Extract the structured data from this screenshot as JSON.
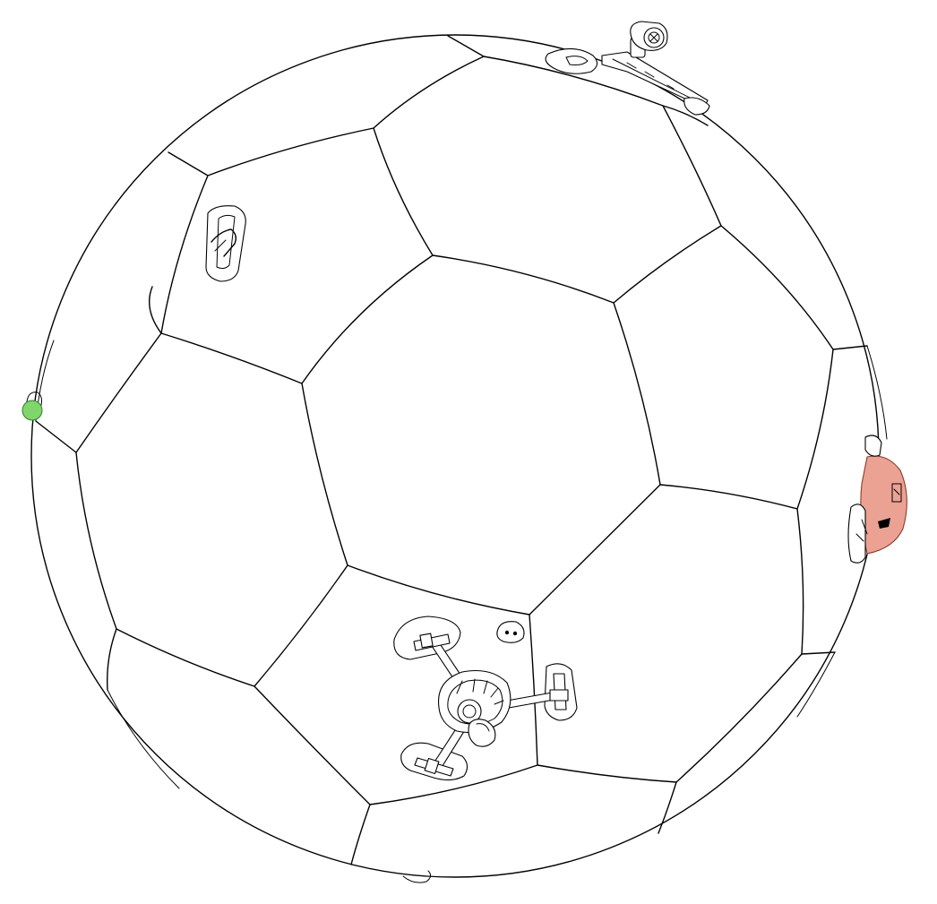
{
  "colors": {
    "background": "#ffffff",
    "line": "#000000",
    "green_marker": "#7fd66b",
    "green_marker_stroke": "#2f7d2a",
    "red_cap": "#eba293",
    "red_cap_stroke": "#8a3b2e"
  },
  "parts": [
    {
      "id": "sphere-outline",
      "kind": "outline"
    },
    {
      "id": "panel-seams",
      "kind": "seams"
    },
    {
      "id": "top-camera-mount",
      "kind": "accessory"
    },
    {
      "id": "upper-left-handle",
      "kind": "accessory"
    },
    {
      "id": "left-green-marker",
      "kind": "marker",
      "color": "#7fd66b"
    },
    {
      "id": "right-red-cap",
      "kind": "marker",
      "color": "#eba293"
    },
    {
      "id": "bottom-tripod-mount",
      "kind": "accessory"
    },
    {
      "id": "bottom-foot",
      "kind": "accessory"
    }
  ]
}
